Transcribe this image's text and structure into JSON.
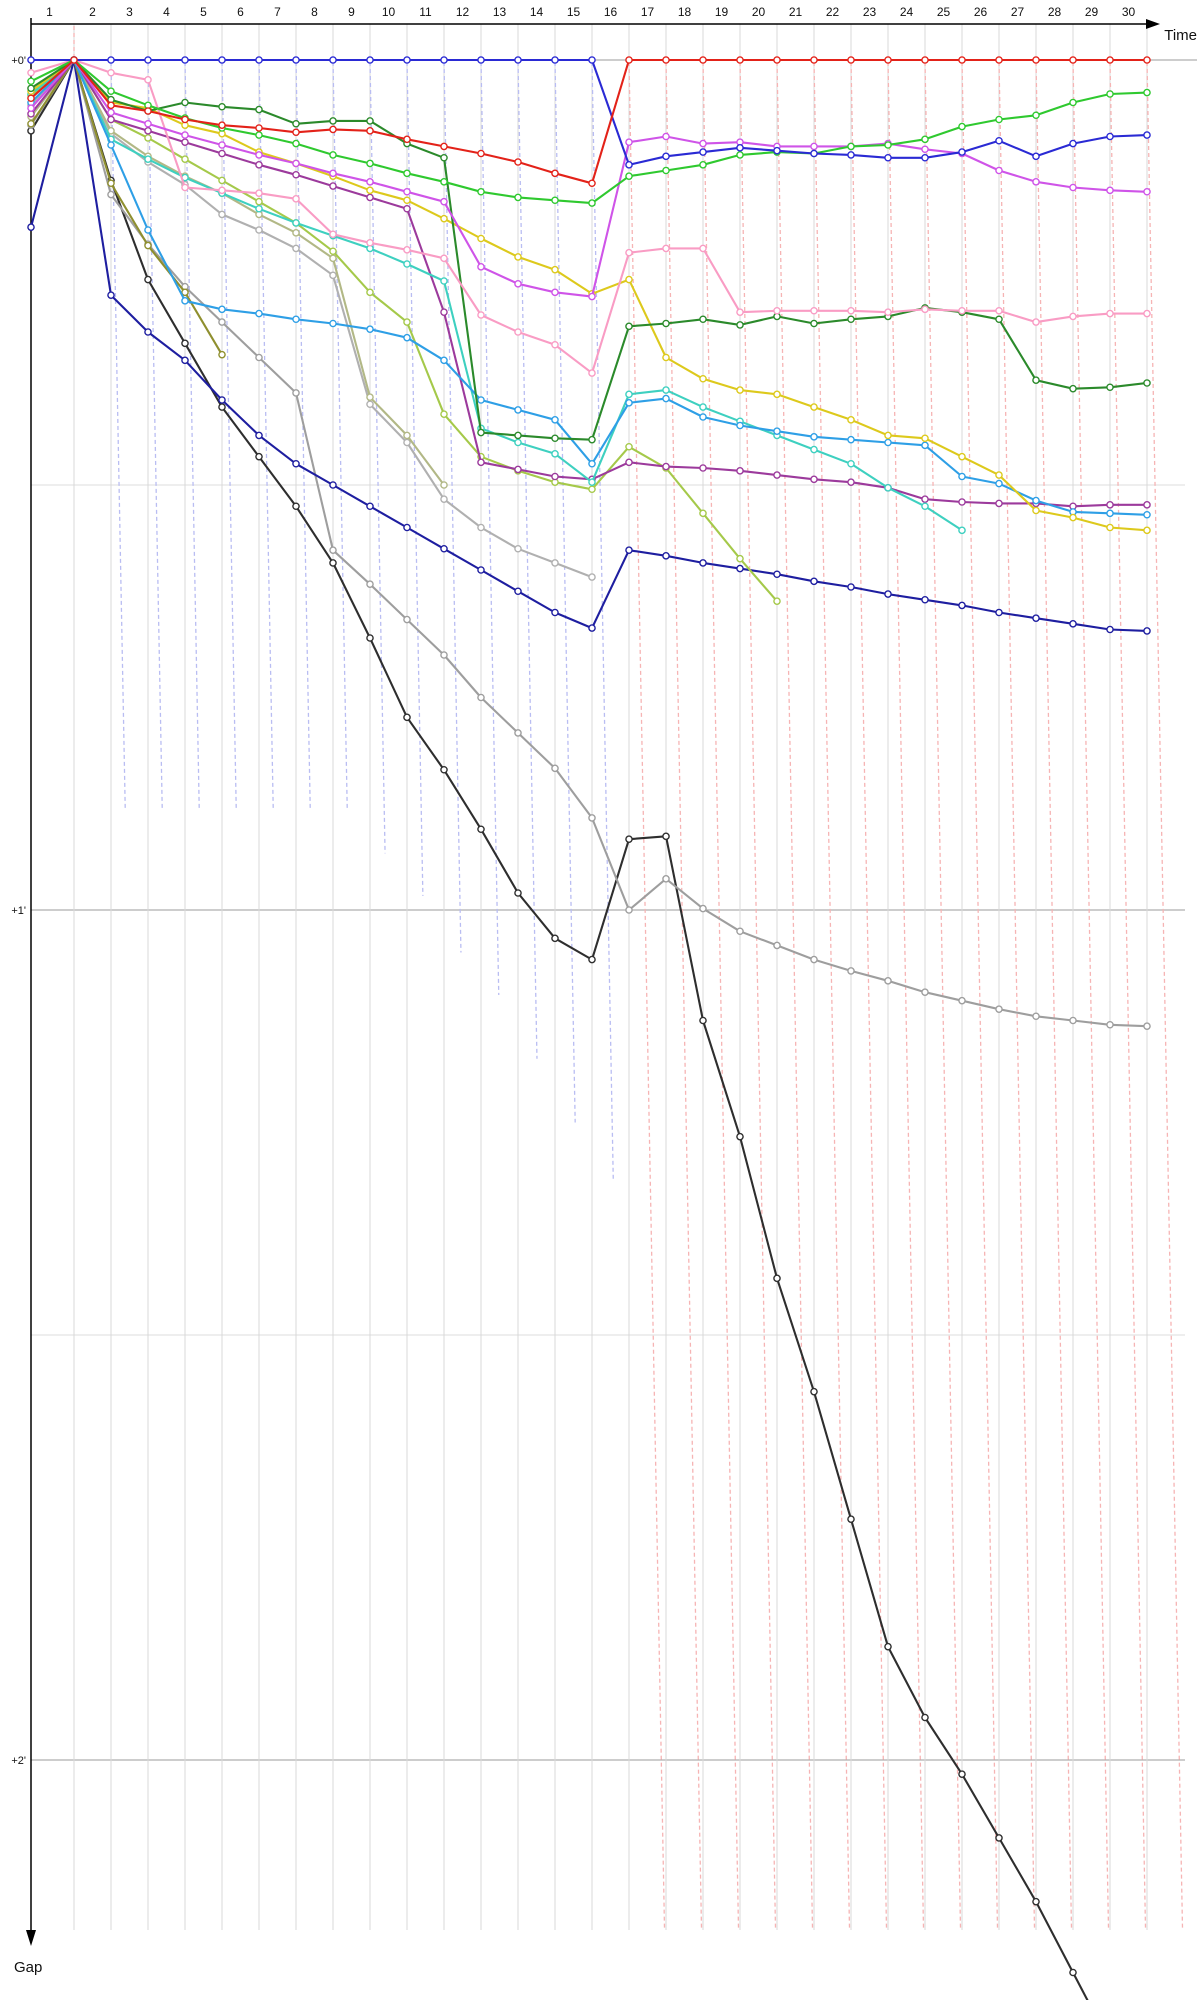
{
  "chart_data": {
    "type": "line",
    "title": "",
    "x_axis": {
      "title": "Time",
      "labels": [
        "1",
        "2",
        "3",
        "4",
        "5",
        "6",
        "7",
        "8",
        "9",
        "10",
        "11",
        "12",
        "13",
        "14",
        "15",
        "16",
        "17",
        "18",
        "19",
        "20",
        "21",
        "22",
        "23",
        "24",
        "25",
        "26",
        "27",
        "28",
        "29",
        "30"
      ]
    },
    "y_axis": {
      "title": "Gap",
      "ticks": [
        {
          "label": "+0'",
          "minutes": 0
        },
        {
          "label": "+1'",
          "minutes": 1
        },
        {
          "label": "+2'",
          "minutes": 2
        }
      ],
      "half_minute_gridlines_minutes": [
        0.5,
        1.5
      ],
      "direction": "down"
    },
    "x_note": "columns are lap 1..30 plus one unlabeled finish column; all cars converge to gap 0 at lap 2",
    "series": [
      {
        "name": "driver-blue",
        "color": "#2a2ad4",
        "values": [
          0,
          0,
          0,
          0,
          0,
          0,
          0,
          0,
          0,
          0,
          0,
          0,
          0,
          0,
          0,
          0,
          7.4,
          6.8,
          6.5,
          6.2,
          6.4,
          6.6,
          6.7,
          6.9,
          6.9,
          6.5,
          5.7,
          6.8,
          5.9,
          5.4,
          5.3
        ]
      },
      {
        "name": "driver-red",
        "color": "#e32219",
        "values": [
          2.7,
          0,
          3.2,
          3.6,
          4.2,
          4.6,
          4.8,
          5.1,
          4.9,
          5.0,
          5.6,
          6.1,
          6.6,
          7.2,
          8.0,
          8.7,
          0,
          0,
          0,
          0,
          0,
          0,
          0,
          0,
          0,
          0,
          0,
          0,
          0,
          0,
          0
        ]
      },
      {
        "name": "driver-green",
        "color": "#2fc92f",
        "values": [
          1.5,
          0,
          2.2,
          3.2,
          4.1,
          4.8,
          5.3,
          5.9,
          6.7,
          7.3,
          8.0,
          8.6,
          9.3,
          9.7,
          9.9,
          10.1,
          8.2,
          7.8,
          7.4,
          6.7,
          6.5,
          6.6,
          6.1,
          6.0,
          5.6,
          4.7,
          4.2,
          3.9,
          3.0,
          2.4,
          2.3
        ]
      },
      {
        "name": "driver-magenta",
        "color": "#cf54e8",
        "values": [
          3.4,
          0,
          3.7,
          4.5,
          5.3,
          6.0,
          6.7,
          7.3,
          8.0,
          8.6,
          9.3,
          10.0,
          14.6,
          15.8,
          16.4,
          16.7,
          5.8,
          5.4,
          5.9,
          5.8,
          6.1,
          6.1,
          6.1,
          5.9,
          6.3,
          6.6,
          7.8,
          8.6,
          9.0,
          9.2,
          9.3
        ]
      },
      {
        "name": "driver-pink",
        "color": "#f99cc4",
        "values": [
          0.9,
          0,
          0.9,
          1.4,
          9.0,
          9.2,
          9.4,
          9.8,
          12.3,
          12.9,
          13.4,
          14.0,
          18.0,
          19.2,
          20.1,
          22.1,
          13.6,
          13.3,
          13.3,
          17.8,
          17.7,
          17.7,
          17.7,
          17.8,
          17.6,
          17.7,
          17.7,
          18.5,
          18.1,
          17.9,
          17.9
        ]
      },
      {
        "name": "driver-darkgreen",
        "color": "#2b8a2b",
        "values": [
          2.0,
          0,
          2.8,
          3.6,
          3.0,
          3.3,
          3.5,
          4.5,
          4.3,
          4.3,
          5.9,
          6.9,
          26.3,
          26.5,
          26.7,
          26.8,
          18.8,
          18.6,
          18.3,
          18.7,
          18.1,
          18.6,
          18.3,
          18.1,
          17.5,
          17.8,
          18.3,
          22.6,
          23.2,
          23.1,
          22.8
        ]
      },
      {
        "name": "driver-yellow",
        "color": "#ddc91c",
        "values": [
          2.2,
          0,
          3.0,
          3.4,
          4.6,
          5.2,
          6.5,
          7.3,
          8.2,
          9.2,
          9.9,
          11.2,
          12.6,
          13.9,
          14.8,
          16.5,
          15.5,
          21.0,
          22.5,
          23.3,
          23.6,
          24.5,
          25.4,
          26.5,
          26.7,
          28.0,
          29.3,
          31.8,
          32.3,
          33.0,
          33.2
        ]
      },
      {
        "name": "driver-lightblue",
        "color": "#2e9fe6",
        "values": [
          3.0,
          0,
          6.0,
          12.0,
          17.0,
          17.6,
          17.9,
          18.3,
          18.6,
          19.0,
          19.6,
          21.2,
          24.0,
          24.7,
          25.4,
          28.5,
          24.2,
          23.9,
          25.2,
          25.8,
          26.2,
          26.6,
          26.8,
          27.0,
          27.2,
          29.4,
          29.9,
          31.1,
          31.9,
          32.0,
          32.1
        ]
      },
      {
        "name": "driver-turquoise",
        "color": "#3ed0c0",
        "values": [
          2.4,
          0,
          5.6,
          7.0,
          8.3,
          9.4,
          10.5,
          11.5,
          12.4,
          13.3,
          14.4,
          15.6,
          26.0,
          27.0,
          27.8,
          29.8,
          23.6,
          23.3,
          24.5,
          25.5,
          26.5,
          27.5,
          28.5,
          30.2,
          31.5,
          33.2,
          null,
          null,
          null,
          null,
          null
        ]
      },
      {
        "name": "driver-purple",
        "color": "#9c3a9c",
        "values": [
          3.8,
          0,
          4.2,
          5.0,
          5.8,
          6.6,
          7.4,
          8.1,
          8.9,
          9.7,
          10.5,
          17.8,
          28.4,
          28.9,
          29.4,
          29.6,
          28.4,
          28.7,
          28.8,
          29.0,
          29.3,
          29.6,
          29.8,
          30.2,
          31.0,
          31.2,
          31.3,
          31.3,
          31.5,
          31.4,
          31.4
        ]
      },
      {
        "name": "driver-yellowgreen",
        "color": "#a5c94a",
        "values": [
          2.5,
          0,
          4.2,
          5.5,
          7.0,
          8.5,
          10.0,
          11.5,
          13.5,
          16.4,
          18.5,
          25.0,
          28.0,
          29.0,
          29.8,
          30.3,
          27.3,
          28.8,
          32.0,
          35.2,
          38.2,
          null,
          null,
          null,
          null,
          null,
          null,
          null,
          null,
          null,
          null
        ]
      },
      {
        "name": "driver-olive",
        "color": "#8f8f2f",
        "values": [
          4.5,
          0,
          8.7,
          13.1,
          16.4,
          20.8,
          null,
          null,
          null,
          null,
          null,
          null,
          null,
          null,
          null,
          null,
          null,
          null,
          null,
          null,
          null,
          null,
          null,
          null,
          null,
          null,
          null,
          null,
          null,
          null,
          null
        ]
      },
      {
        "name": "driver-tan",
        "color": "#b2b886",
        "values": [
          4.0,
          0,
          5.0,
          6.8,
          8.2,
          9.4,
          10.9,
          12.2,
          14.0,
          23.8,
          26.5,
          30.0,
          null,
          null,
          null,
          null,
          null,
          null,
          null,
          null,
          null,
          null,
          null,
          null,
          null,
          null,
          null,
          null,
          null,
          null,
          null
        ]
      },
      {
        "name": "driver-silver",
        "color": "#b0b0b0",
        "values": [
          3.2,
          0,
          5.2,
          7.2,
          8.8,
          10.9,
          12.0,
          13.3,
          15.2,
          24.3,
          27.0,
          31.0,
          33.0,
          34.5,
          35.5,
          36.5,
          null,
          null,
          null,
          null,
          null,
          null,
          null,
          null,
          null,
          null,
          null,
          null,
          null,
          null,
          null
        ]
      },
      {
        "name": "driver-navy",
        "color": "#1e1ea0",
        "values": [
          11.8,
          0,
          16.6,
          19.2,
          21.2,
          24.0,
          26.5,
          28.5,
          30.0,
          31.5,
          33.0,
          34.5,
          36.0,
          37.5,
          39.0,
          40.1,
          34.6,
          35.0,
          35.5,
          35.9,
          36.3,
          36.8,
          37.2,
          37.7,
          38.1,
          38.5,
          39.0,
          39.4,
          39.8,
          40.2,
          40.3
        ]
      },
      {
        "name": "driver-gray",
        "color": "#9e9e9e",
        "values": [
          4.6,
          0,
          9.5,
          13.0,
          16.0,
          18.5,
          21.0,
          23.5,
          34.6,
          37.0,
          39.5,
          42.0,
          45.0,
          47.5,
          50.0,
          53.5,
          60.0,
          57.8,
          59.9,
          61.5,
          62.5,
          63.5,
          64.3,
          65.0,
          65.8,
          66.4,
          67.0,
          67.5,
          67.8,
          68.1,
          68.2
        ]
      },
      {
        "name": "driver-black",
        "color": "#2e2e2e",
        "values": [
          5.0,
          0,
          8.5,
          15.5,
          20.0,
          24.5,
          28.0,
          31.5,
          35.5,
          40.8,
          46.4,
          50.1,
          54.3,
          58.8,
          62.0,
          63.5,
          55.0,
          54.8,
          67.8,
          76.0,
          86.0,
          94.0,
          103.0,
          112.0,
          117.0,
          121.0,
          125.5,
          130.0,
          135.0,
          140.0,
          144.0
        ]
      }
    ],
    "leader_lap_guides": {
      "description": "pale dashed vertical guide lines dropping from the leader line at each lap, colored after the current leader",
      "blue_phase": {
        "color": "#b9bdf2",
        "laps": [
          3,
          4,
          5,
          6,
          7,
          8,
          9,
          10,
          11,
          12,
          13,
          14,
          15,
          16
        ],
        "end_gap_seconds": [
          53,
          53,
          53,
          53,
          53,
          53,
          53,
          56,
          59,
          63,
          66,
          70.5,
          75,
          79
        ]
      },
      "red_phase": {
        "color": "#f6b4b4",
        "laps": [
          17,
          18,
          19,
          20,
          21,
          22,
          23,
          24,
          25,
          26,
          27,
          28,
          29,
          30,
          31
        ],
        "end_gap_seconds": 132
      },
      "start_guide": {
        "color": "#f6b4b4",
        "lap": 2
      }
    },
    "legend": "none"
  },
  "labels": {
    "x_axis_title": "Time",
    "y_axis_title": "Gap"
  }
}
